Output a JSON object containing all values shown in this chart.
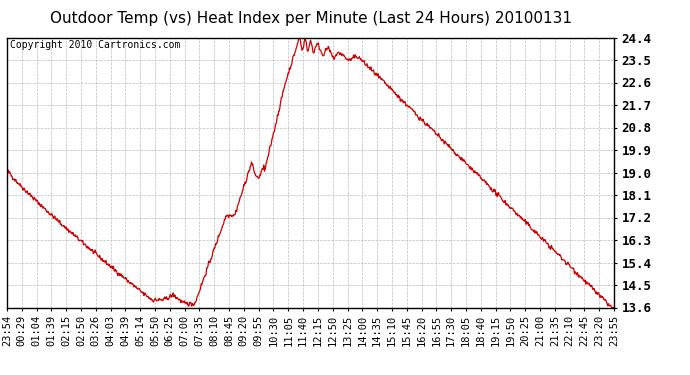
{
  "title": "Outdoor Temp (vs) Heat Index per Minute (Last 24 Hours) 20100131",
  "copyright": "Copyright 2010 Cartronics.com",
  "line_color": "#cc0000",
  "background_color": "#ffffff",
  "grid_color": "#bbbbbb",
  "ylim": [
    13.6,
    24.4
  ],
  "yticks": [
    13.6,
    14.5,
    15.4,
    16.3,
    17.2,
    18.1,
    19.0,
    19.9,
    20.8,
    21.7,
    22.6,
    23.5,
    24.4
  ],
  "xtick_labels": [
    "23:54",
    "00:29",
    "01:04",
    "01:39",
    "02:15",
    "02:50",
    "03:26",
    "04:03",
    "04:39",
    "05:14",
    "05:50",
    "06:25",
    "07:00",
    "07:35",
    "08:10",
    "08:45",
    "09:20",
    "09:55",
    "10:30",
    "11:05",
    "11:40",
    "12:15",
    "12:50",
    "13:25",
    "14:00",
    "14:35",
    "15:10",
    "15:45",
    "16:20",
    "16:55",
    "17:30",
    "18:05",
    "18:40",
    "19:15",
    "19:50",
    "20:25",
    "21:00",
    "21:35",
    "22:10",
    "22:45",
    "23:20",
    "23:55"
  ],
  "title_fontsize": 11,
  "copyright_fontsize": 7,
  "tick_fontsize": 7.5,
  "ytick_fontsize": 9,
  "line_width": 0.9
}
